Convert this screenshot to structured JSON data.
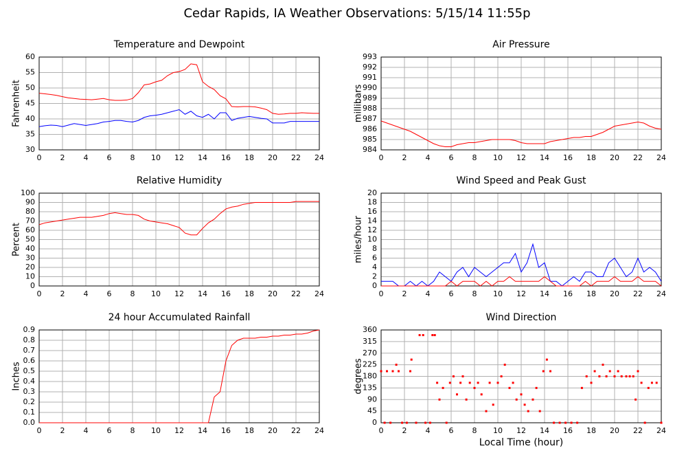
{
  "title": "Cedar Rapids, IA Weather Observations: 5/15/14 11:55p",
  "chart_data": [
    {
      "type": "line",
      "title": "Temperature and Dewpoint",
      "ylabel": "Fahrenheit",
      "x": [
        0,
        0.5,
        1,
        1.5,
        2,
        2.5,
        3,
        3.5,
        4,
        4.5,
        5,
        5.5,
        6,
        6.5,
        7,
        7.5,
        8,
        8.5,
        9,
        9.5,
        10,
        10.5,
        11,
        11.5,
        12,
        12.5,
        13,
        13.5,
        14,
        14.5,
        15,
        15.5,
        16,
        16.5,
        17,
        17.5,
        18,
        18.5,
        19,
        19.5,
        20,
        20.5,
        21,
        21.5,
        22,
        22.5,
        23,
        23.5,
        24
      ],
      "series": [
        {
          "color": "#ff0000",
          "values": [
            48.3,
            48.1,
            47.9,
            47.6,
            47.2,
            46.8,
            46.6,
            46.4,
            46.3,
            46.2,
            46.4,
            46.6,
            46.2,
            46.0,
            46.0,
            46.1,
            46.6,
            48.5,
            51.0,
            51.3,
            52.0,
            52.5,
            54.0,
            55.0,
            55.3,
            56.0,
            57.8,
            57.5,
            52.0,
            50.5,
            49.5,
            47.5,
            46.5,
            44.0,
            43.9,
            44.0,
            44.0,
            43.9,
            43.5,
            43.0,
            41.8,
            41.5,
            41.6,
            41.8,
            41.8,
            42.0,
            41.9,
            41.8,
            41.8
          ]
        },
        {
          "color": "#0000ff",
          "values": [
            37.5,
            37.8,
            38.0,
            37.9,
            37.5,
            38.0,
            38.5,
            38.2,
            37.9,
            38.2,
            38.5,
            39.0,
            39.2,
            39.5,
            39.5,
            39.2,
            39.0,
            39.5,
            40.5,
            41.0,
            41.2,
            41.5,
            42.0,
            42.5,
            43.0,
            41.5,
            42.5,
            41.0,
            40.5,
            41.5,
            40.0,
            42.0,
            42.0,
            39.5,
            40.2,
            40.5,
            40.8,
            40.5,
            40.2,
            40.0,
            38.7,
            38.7,
            38.7,
            39.2,
            39.2,
            39.2,
            39.2,
            39.2,
            39.2
          ]
        }
      ],
      "xlim": [
        0,
        24
      ],
      "ylim": [
        30,
        60
      ],
      "xticks": [
        0,
        2,
        4,
        6,
        8,
        10,
        12,
        14,
        16,
        18,
        20,
        22,
        24
      ],
      "yticks": [
        30,
        35,
        40,
        45,
        50,
        55,
        60
      ],
      "grid": true
    },
    {
      "type": "line",
      "title": "Air Pressure",
      "ylabel": "millibars",
      "x": [
        0,
        0.5,
        1,
        1.5,
        2,
        2.5,
        3,
        3.5,
        4,
        4.5,
        5,
        5.5,
        6,
        6.5,
        7,
        7.5,
        8,
        8.5,
        9,
        9.5,
        10,
        10.5,
        11,
        11.5,
        12,
        12.5,
        13,
        13.5,
        14,
        14.5,
        15,
        15.5,
        16,
        16.5,
        17,
        17.5,
        18,
        18.5,
        19,
        19.5,
        20,
        20.5,
        21,
        21.5,
        22,
        22.5,
        23,
        23.5,
        24
      ],
      "series": [
        {
          "color": "#ff0000",
          "values": [
            986.8,
            986.6,
            986.4,
            986.2,
            986.0,
            985.8,
            985.5,
            985.2,
            984.9,
            984.6,
            984.4,
            984.3,
            984.3,
            984.5,
            984.6,
            984.7,
            984.7,
            984.8,
            984.9,
            985.0,
            985.0,
            985.0,
            985.0,
            984.9,
            984.7,
            984.6,
            984.6,
            984.6,
            984.6,
            984.8,
            984.9,
            985.0,
            985.1,
            985.2,
            985.2,
            985.3,
            985.3,
            985.5,
            985.7,
            986.0,
            986.3,
            986.4,
            986.5,
            986.6,
            986.7,
            986.6,
            986.3,
            986.1,
            986.0
          ]
        }
      ],
      "xlim": [
        0,
        24
      ],
      "ylim": [
        984,
        993
      ],
      "xticks": [
        0,
        2,
        4,
        6,
        8,
        10,
        12,
        14,
        16,
        18,
        20,
        22,
        24
      ],
      "yticks": [
        984,
        985,
        986,
        987,
        988,
        989,
        990,
        991,
        992,
        993
      ],
      "grid": true
    },
    {
      "type": "line",
      "title": "Relative Humidity",
      "ylabel": "Percent",
      "x": [
        0,
        0.5,
        1,
        1.5,
        2,
        2.5,
        3,
        3.5,
        4,
        4.5,
        5,
        5.5,
        6,
        6.5,
        7,
        7.5,
        8,
        8.5,
        9,
        9.5,
        10,
        10.5,
        11,
        11.5,
        12,
        12.5,
        13,
        13.5,
        14,
        14.5,
        15,
        15.5,
        16,
        16.5,
        17,
        17.5,
        18,
        18.5,
        19,
        19.5,
        20,
        20.5,
        21,
        21.5,
        22,
        22.5,
        23,
        23.5,
        24
      ],
      "series": [
        {
          "color": "#ff0000",
          "values": [
            66,
            68,
            69,
            70,
            71,
            72,
            73,
            74,
            74,
            74,
            75,
            76,
            78,
            79,
            78,
            77,
            77,
            76,
            72,
            70,
            69,
            68,
            67,
            65,
            63,
            57,
            55,
            55,
            62,
            68,
            72,
            78,
            83,
            85,
            86,
            88,
            89,
            90,
            90,
            90,
            90,
            90,
            90,
            90,
            91,
            91,
            91,
            91,
            91
          ]
        }
      ],
      "xlim": [
        0,
        24
      ],
      "ylim": [
        0,
        100
      ],
      "xticks": [
        0,
        2,
        4,
        6,
        8,
        10,
        12,
        14,
        16,
        18,
        20,
        22,
        24
      ],
      "yticks": [
        0,
        10,
        20,
        30,
        40,
        50,
        60,
        70,
        80,
        90,
        100
      ],
      "grid": true
    },
    {
      "type": "line",
      "title": "Wind Speed and Peak Gust",
      "ylabel": "miles/hour",
      "x": [
        0,
        0.5,
        1,
        1.5,
        2,
        2.5,
        3,
        3.5,
        4,
        4.5,
        5,
        5.5,
        6,
        6.5,
        7,
        7.5,
        8,
        8.5,
        9,
        9.5,
        10,
        10.5,
        11,
        11.5,
        12,
        12.5,
        13,
        13.5,
        14,
        14.5,
        15,
        15.5,
        16,
        16.5,
        17,
        17.5,
        18,
        18.5,
        19,
        19.5,
        20,
        20.5,
        21,
        21.5,
        22,
        22.5,
        23,
        23.5,
        24
      ],
      "series": [
        {
          "color": "#0000ff",
          "values": [
            1,
            1,
            1,
            0,
            0,
            1,
            0,
            1,
            0,
            1,
            3,
            2,
            1,
            3,
            4,
            2,
            4,
            3,
            2,
            3,
            4,
            5,
            5,
            7,
            3,
            5,
            9,
            4,
            5,
            1,
            1,
            0,
            1,
            2,
            1,
            3,
            3,
            2,
            2,
            5,
            6,
            4,
            2,
            3,
            6,
            3,
            4,
            3,
            1
          ]
        },
        {
          "color": "#ff0000",
          "values": [
            0,
            0,
            0,
            0,
            0,
            0,
            0,
            0,
            0,
            0,
            0,
            0,
            1,
            0,
            1,
            1,
            1,
            0,
            1,
            0,
            1,
            1,
            2,
            1,
            1,
            1,
            1,
            1,
            2,
            1,
            0,
            0,
            0,
            0,
            0,
            1,
            0,
            1,
            1,
            1,
            2,
            1,
            1,
            1,
            2,
            1,
            1,
            1,
            0
          ]
        }
      ],
      "xlim": [
        0,
        24
      ],
      "ylim": [
        0,
        20
      ],
      "xticks": [
        0,
        2,
        4,
        6,
        8,
        10,
        12,
        14,
        16,
        18,
        20,
        22,
        24
      ],
      "yticks": [
        0,
        2,
        4,
        6,
        8,
        10,
        12,
        14,
        16,
        18,
        20
      ],
      "grid": true
    },
    {
      "type": "line",
      "title": "24 hour Accumulated Rainfall",
      "ylabel": "Inches",
      "x": [
        0,
        0.5,
        1,
        1.5,
        2,
        2.5,
        3,
        3.5,
        4,
        4.5,
        5,
        5.5,
        6,
        6.5,
        7,
        7.5,
        8,
        8.5,
        9,
        9.5,
        10,
        10.5,
        11,
        11.5,
        12,
        12.5,
        13,
        13.5,
        14,
        14.5,
        15,
        15.5,
        16,
        16.5,
        17,
        17.5,
        18,
        18.5,
        19,
        19.5,
        20,
        20.5,
        21,
        21.5,
        22,
        22.5,
        23,
        23.5,
        24
      ],
      "series": [
        {
          "color": "#ff0000",
          "values": [
            0,
            0,
            0,
            0,
            0,
            0,
            0,
            0,
            0,
            0,
            0,
            0,
            0,
            0,
            0,
            0,
            0,
            0,
            0,
            0,
            0,
            0,
            0,
            0,
            0,
            0,
            0,
            0,
            0,
            0,
            0.25,
            0.3,
            0.6,
            0.75,
            0.8,
            0.82,
            0.82,
            0.82,
            0.83,
            0.83,
            0.84,
            0.84,
            0.85,
            0.85,
            0.86,
            0.86,
            0.87,
            0.89,
            0.9
          ]
        }
      ],
      "xlim": [
        0,
        24
      ],
      "ylim": [
        0,
        0.9
      ],
      "xticks": [
        0,
        2,
        4,
        6,
        8,
        10,
        12,
        14,
        16,
        18,
        20,
        22,
        24
      ],
      "yticks": [
        {
          "value": 0,
          "label": "0.0"
        },
        0.1,
        0.2,
        0.3,
        0.4,
        0.5,
        0.6,
        0.7,
        0.8,
        0.9
      ],
      "grid": true
    },
    {
      "type": "scatter",
      "title": "Wind Direction",
      "ylabel": "degrees",
      "xlabel": "Local Time (hour)",
      "color": "#ff0000",
      "x": [
        0,
        0.3,
        0.5,
        0.8,
        1,
        1.3,
        1.5,
        1.8,
        2.2,
        2.5,
        2.6,
        3,
        3.3,
        3.6,
        3.8,
        4.2,
        4.4,
        4.6,
        4.8,
        5,
        5.3,
        5.6,
        5.9,
        6.2,
        6.5,
        6.8,
        7,
        7.3,
        7.6,
        8,
        8.3,
        8.6,
        9,
        9.3,
        9.6,
        10,
        10.3,
        10.6,
        11,
        11.3,
        11.6,
        12,
        12.3,
        12.6,
        13,
        13.3,
        13.6,
        13.9,
        14.2,
        14.5,
        14.8,
        15.3,
        15.8,
        16.3,
        16.8,
        17.2,
        17.6,
        18,
        18.3,
        18.7,
        19,
        19.3,
        19.6,
        20,
        20.3,
        20.6,
        21,
        21.3,
        21.6,
        21.8,
        22,
        22.3,
        22.6,
        22.9,
        23.2,
        23.6,
        24
      ],
      "values": [
        200,
        0,
        200,
        0,
        200,
        225,
        200,
        0,
        0,
        200,
        245,
        0,
        340,
        340,
        0,
        0,
        340,
        340,
        155,
        90,
        135,
        0,
        155,
        180,
        110,
        155,
        180,
        90,
        155,
        135,
        155,
        110,
        45,
        155,
        70,
        155,
        180,
        225,
        135,
        155,
        90,
        110,
        70,
        45,
        90,
        135,
        45,
        200,
        245,
        200,
        0,
        0,
        0,
        0,
        0,
        135,
        180,
        155,
        200,
        180,
        225,
        180,
        200,
        180,
        200,
        180,
        180,
        180,
        180,
        90,
        200,
        155,
        0,
        135,
        155,
        155,
        0
      ],
      "xlim": [
        0,
        24
      ],
      "ylim": [
        0,
        360
      ],
      "xticks": [
        0,
        2,
        4,
        6,
        8,
        10,
        12,
        14,
        16,
        18,
        20,
        22,
        24
      ],
      "yticks": [
        0,
        45,
        90,
        135,
        180,
        225,
        270,
        315,
        360
      ],
      "grid": true
    }
  ]
}
